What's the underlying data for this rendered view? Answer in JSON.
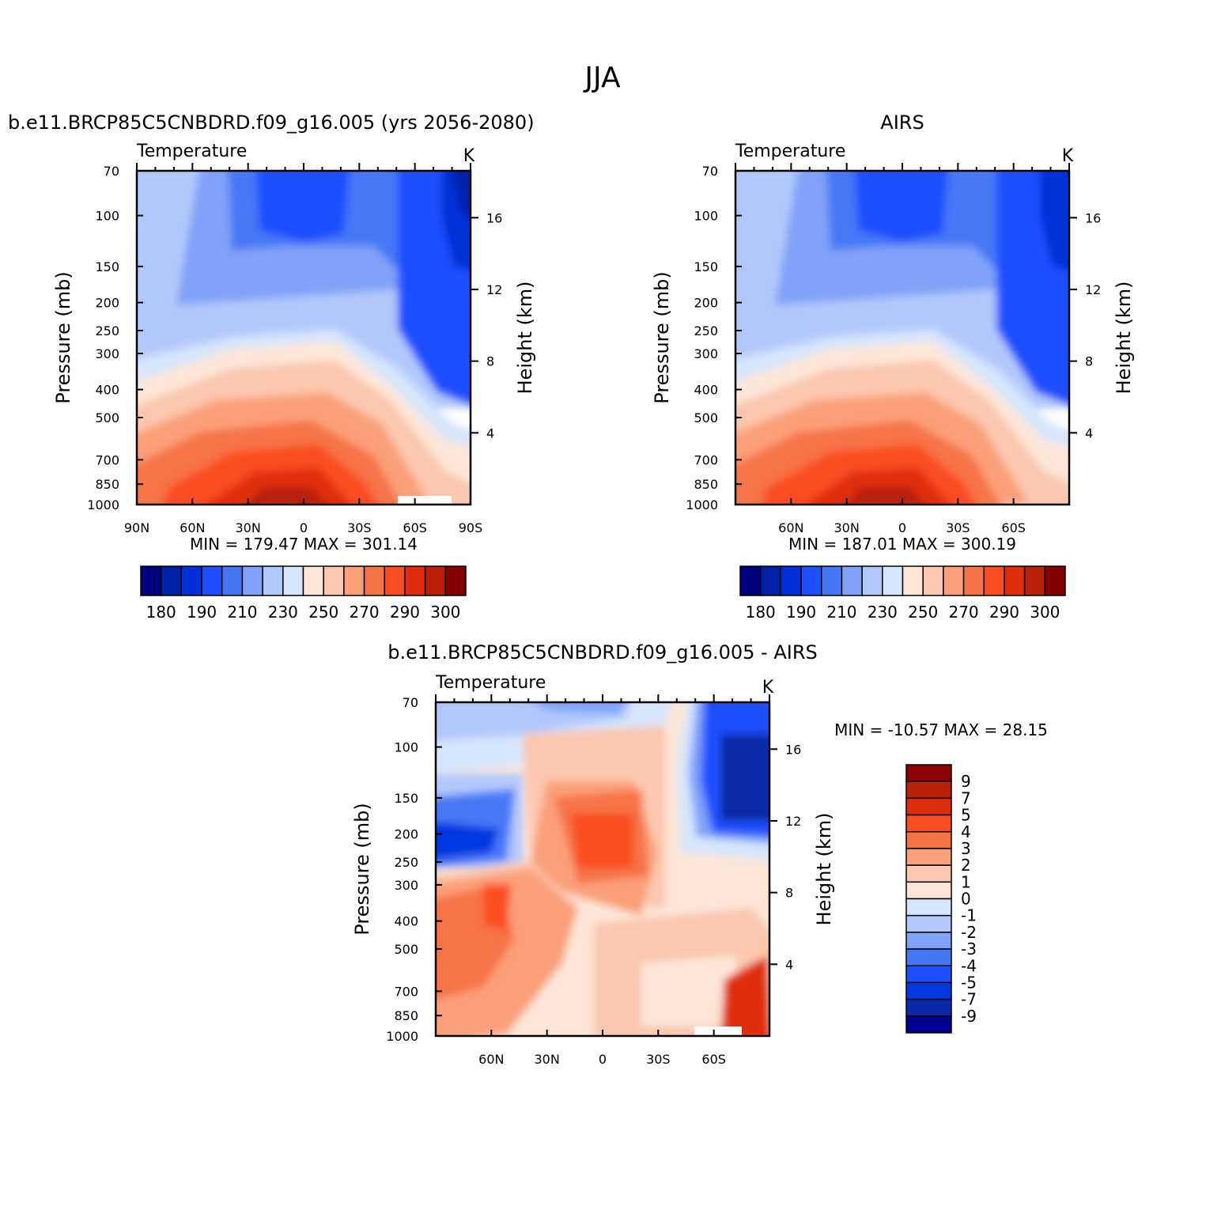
{
  "page_title": "JJA",
  "colors": {
    "temperature_scale": [
      "#000080",
      "#0020a8",
      "#0030d8",
      "#1e50ff",
      "#4678f6",
      "#80a2f8",
      "#b2c8fc",
      "#d6e6fc",
      "#fde6d8",
      "#fbc7ae",
      "#fba07a",
      "#f77448",
      "#fb4e20",
      "#e02e0c",
      "#b82008",
      "#840000"
    ],
    "difference_scale": [
      "#000090",
      "#0c2aa8",
      "#0038e0",
      "#1e50ff",
      "#4678f6",
      "#80a2f8",
      "#b2c8fc",
      "#d6e6fc",
      "#fde6d8",
      "#fbc7ae",
      "#fba07a",
      "#f77448",
      "#fb4e20",
      "#e02e0c",
      "#b82008",
      "#8c0000"
    ]
  },
  "panels": [
    {
      "id": "model",
      "heading": "b.e11.BRCP85C5CNBDRD.f09_g16.005 (yrs 2056-2080)",
      "variable": "Temperature",
      "units": "K",
      "stats": {
        "min_label": "MIN =",
        "min": "179.47",
        "max_label": "MAX =",
        "max": "301.14"
      },
      "colorbar_labels": [
        "180",
        "190",
        "210",
        "230",
        "250",
        "270",
        "290",
        "300"
      ]
    },
    {
      "id": "obs",
      "heading": "AIRS",
      "variable": "Temperature",
      "units": "K",
      "stats": {
        "min_label": "MIN =",
        "min": "187.01",
        "max_label": "MAX =",
        "max": "300.19"
      },
      "colorbar_labels": [
        "180",
        "190",
        "210",
        "230",
        "250",
        "270",
        "290",
        "300"
      ]
    },
    {
      "id": "diff",
      "heading": "b.e11.BRCP85C5CNBDRD.f09_g16.005 - AIRS",
      "variable": "Temperature",
      "units": "K",
      "stats": {
        "min_label": "MIN =",
        "min": "-10.57",
        "max_label": "MAX =",
        "max": "28.15"
      },
      "colorbar_labels": [
        "9",
        "7",
        "5",
        "4",
        "3",
        "2",
        "1",
        "0",
        "-1",
        "-2",
        "-3",
        "-4",
        "-5",
        "-7",
        "-9"
      ]
    }
  ],
  "chart_data": [
    {
      "type": "heatmap",
      "title": "b.e11.BRCP85C5CNBDRD.f09_g16.005 (yrs 2056-2080)",
      "subtitle": "Temperature",
      "units": "K",
      "xlabel": "",
      "ylabel": "Pressure (mb)",
      "y2label": "Height (km)",
      "x_ticks": [
        "90N",
        "60N",
        "30N",
        "0",
        "30S",
        "60S",
        "90S"
      ],
      "y_ticks": [
        "70",
        "100",
        "150",
        "200",
        "250",
        "300",
        "400",
        "500",
        "700",
        "850",
        "1000"
      ],
      "y2_ticks": [
        "16",
        "12",
        "8",
        "4"
      ],
      "y_scale": "log",
      "levels": [
        180,
        185,
        190,
        200,
        210,
        220,
        230,
        240,
        250,
        260,
        270,
        280,
        290,
        295,
        300
      ],
      "min": 179.47,
      "max": 301.14
    },
    {
      "type": "heatmap",
      "title": "AIRS",
      "subtitle": "Temperature",
      "units": "K",
      "xlabel": "",
      "ylabel": "Pressure (mb)",
      "y2label": "Height (km)",
      "x_ticks": [
        "60N",
        "30N",
        "0",
        "30S",
        "60S"
      ],
      "y_ticks": [
        "70",
        "100",
        "150",
        "200",
        "250",
        "300",
        "400",
        "500",
        "700",
        "850",
        "1000"
      ],
      "y2_ticks": [
        "16",
        "12",
        "8",
        "4"
      ],
      "y_scale": "log",
      "levels": [
        180,
        185,
        190,
        200,
        210,
        220,
        230,
        240,
        250,
        260,
        270,
        280,
        290,
        295,
        300
      ],
      "min": 187.01,
      "max": 300.19
    },
    {
      "type": "heatmap",
      "title": "b.e11.BRCP85C5CNBDRD.f09_g16.005 - AIRS",
      "subtitle": "Temperature",
      "units": "K",
      "xlabel": "",
      "ylabel": "Pressure (mb)",
      "y2label": "Height (km)",
      "x_ticks": [
        "60N",
        "30N",
        "0",
        "30S",
        "60S"
      ],
      "y_ticks": [
        "70",
        "100",
        "150",
        "200",
        "250",
        "300",
        "400",
        "500",
        "700",
        "850",
        "1000"
      ],
      "y2_ticks": [
        "16",
        "12",
        "8",
        "4"
      ],
      "y_scale": "log",
      "levels": [
        -9,
        -7,
        -5,
        -4,
        -3,
        -2,
        -1,
        0,
        1,
        2,
        3,
        4,
        5,
        7,
        9
      ],
      "min": -10.57,
      "max": 28.15
    }
  ]
}
